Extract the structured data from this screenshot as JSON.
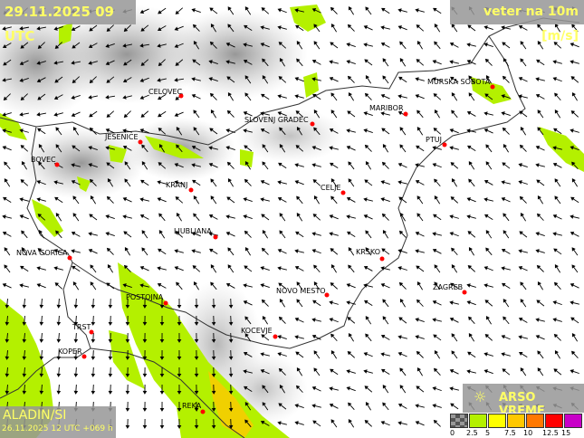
{
  "header": {
    "valid_time": "29.11.2025 09 UTC",
    "parameter": "veter na 10m [m/s]"
  },
  "footer": {
    "model": "ALADIN/SI",
    "run": "26.11.2025 12 UTC +069 h",
    "brand": "ARSO VREME",
    "brand_icon": "sun-icon"
  },
  "legend": {
    "unit": "m/s",
    "labels": [
      "0",
      "2.5",
      "5",
      "7.5",
      "10",
      "12.5",
      "15"
    ],
    "colors": [
      "#808080",
      "#b4f000",
      "#ffff00",
      "#ffc800",
      "#ff7800",
      "#ff0000",
      "#c800c8"
    ]
  },
  "cities": [
    {
      "name": "CELOVEC"
    },
    {
      "name": "SLOVENJ GRADEC"
    },
    {
      "name": "MARIBOR"
    },
    {
      "name": "MURSKA SOBOTA"
    },
    {
      "name": "PTUJ"
    },
    {
      "name": "JESENICE"
    },
    {
      "name": "BOVEC"
    },
    {
      "name": "KRANJ"
    },
    {
      "name": "CELJE"
    },
    {
      "name": "LJUBLJANA"
    },
    {
      "name": "NOVA GORICA"
    },
    {
      "name": "KRSKO"
    },
    {
      "name": "ZAGREB"
    },
    {
      "name": "NOVO MESTO"
    },
    {
      "name": "POSTOJNA"
    },
    {
      "name": "KOCEVJE"
    },
    {
      "name": "TRST"
    },
    {
      "name": "KOPER"
    },
    {
      "name": "REKA"
    }
  ],
  "colors": {
    "city_dot": "#ff0000",
    "wind_2_5_5": "#b4f000",
    "wind_5_7_5": "#ffff00",
    "wind_7_5_10": "#ffc800"
  }
}
